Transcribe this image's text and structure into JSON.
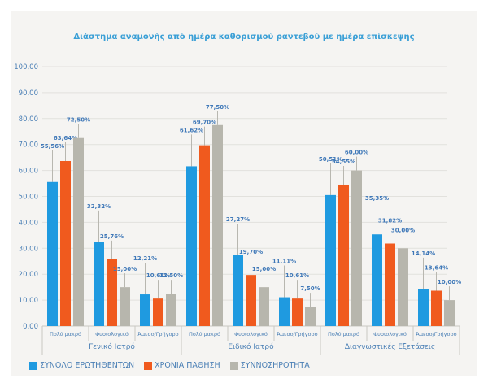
{
  "chart_data": {
    "type": "bar",
    "title": "Διάστημα αναμονής από ημέρα καθορισμού ραντεβού με ημέρα επίσκεψης",
    "xlabel": "",
    "ylabel": "",
    "ylim": [
      0,
      100
    ],
    "yticks": [
      "0,00",
      "10,00",
      "20,00",
      "30,00",
      "40,00",
      "50,00",
      "60,00",
      "70,00",
      "80,00",
      "90,00",
      "100,00"
    ],
    "grid": true,
    "legend_position": "bottom-left",
    "groups": [
      {
        "label": "Γενικό Ιατρό",
        "categories": [
          "Πολύ μακρό",
          "Φυσιολογικό",
          "Άμεσο/Γρήγορο"
        ]
      },
      {
        "label": "Ειδικό Ιατρό",
        "categories": [
          "Πολύ μακρό",
          "Φυσιολογικό",
          "Άμεσο/Γρήγορο"
        ]
      },
      {
        "label": "Διαγνωστικές Εξετάσεις",
        "categories": [
          "Πολύ μακρό",
          "Φυσιολογικό",
          "Άμεσο/Γρήγορο"
        ]
      }
    ],
    "categories": [
      "Γενικό Ιατρό - Πολύ μακρό",
      "Γενικό Ιατρό - Φυσιολογικό",
      "Γενικό Ιατρό - Άμεσο/Γρήγορο",
      "Ειδικό Ιατρό - Πολύ μακρό",
      "Ειδικό Ιατρό - Φυσιολογικό",
      "Ειδικό Ιατρό - Άμεσο/Γρήγορο",
      "Διαγνωστικές Εξετάσεις - Πολύ μακρό",
      "Διαγνωστικές Εξετάσεις - Φυσιολογικό",
      "Διαγνωστικές Εξετάσεις - Άμεσο/Γρήγορο"
    ],
    "series": [
      {
        "name": "ΣΥΝΟΛΟ ΕΡΩΤΗΘΕΝΤΩΝ",
        "color": "#1f9ae0",
        "values": [
          55.56,
          32.32,
          12.21,
          61.62,
          27.27,
          11.11,
          50.51,
          35.35,
          14.14
        ],
        "labels": [
          "55,56%",
          "32,32%",
          "12,21%",
          "61,62%",
          "27,27%",
          "11,11%",
          "50,51%",
          "35,35%",
          "14,14%"
        ]
      },
      {
        "name": "ΧΡΟΝΙΑ ΠΑΘΗΣΗ",
        "color": "#f05a1e",
        "values": [
          63.64,
          25.76,
          10.61,
          69.7,
          19.7,
          10.61,
          54.55,
          31.82,
          13.64
        ],
        "labels": [
          "63,64%",
          "25,76%",
          "10,61%",
          "69,70%",
          "19,70%",
          "10,61%",
          "54,55%",
          "31,82%",
          "13,64%"
        ]
      },
      {
        "name": "ΣΥΝΝΟΣΗΡΟΤΗΤΑ",
        "color": "#b7b6ad",
        "values": [
          72.5,
          15.0,
          12.5,
          77.5,
          15.0,
          7.5,
          60.0,
          30.0,
          10.0
        ],
        "labels": [
          "72,50%",
          "15,00%",
          "12,50%",
          "77,50%",
          "15,00%",
          "7,50%",
          "60,00%",
          "30,00%",
          "10,00%"
        ]
      }
    ]
  },
  "colors": {
    "title": "#3a9fd6",
    "axis_text": "#4a7fb5",
    "data_label": "#3f78b8",
    "grid": "#e2e1dd",
    "panel_bg": "#f5f4f2"
  }
}
